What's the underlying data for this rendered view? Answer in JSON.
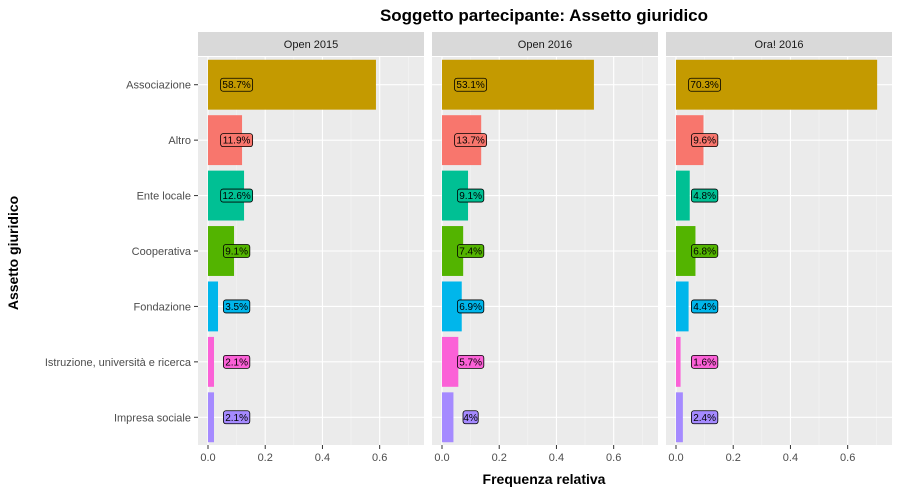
{
  "chart_data": {
    "type": "bar",
    "orientation": "horizontal",
    "title": "Soggetto partecipante: Assetto giuridico",
    "xlabel": "Frequenza relativa",
    "ylabel": "Assetto giuridico",
    "xlim": [
      0,
      0.72
    ],
    "x_ticks": [
      "0.0",
      "0.2",
      "0.4",
      "0.6"
    ],
    "x_tick_values": [
      0,
      0.2,
      0.4,
      0.6
    ],
    "categories": [
      "Associazione",
      "Altro",
      "Ente locale",
      "Cooperativa",
      "Fondazione",
      "Istruzione, università e ricerca",
      "Impresa sociale"
    ],
    "category_colors": {
      "Associazione": "#C49A00",
      "Altro": "#F8766D",
      "Ente locale": "#00C094",
      "Cooperativa": "#53B400",
      "Fondazione": "#00B6EB",
      "Istruzione, università e ricerca": "#FB61D7",
      "Impresa sociale": "#A58AFF"
    },
    "grid": true,
    "legend": "none",
    "panels": [
      {
        "name": "Open 2015",
        "values": [
          0.587,
          0.119,
          0.126,
          0.091,
          0.035,
          0.021,
          0.021
        ],
        "labels": [
          "58.7%",
          "11.9%",
          "12.6%",
          "9.1%",
          "3.5%",
          "2.1%",
          "2.1%"
        ]
      },
      {
        "name": "Open 2016",
        "values": [
          0.531,
          0.137,
          0.091,
          0.074,
          0.069,
          0.057,
          0.04
        ],
        "labels": [
          "53.1%",
          "13.7%",
          "9.1%",
          "7.4%",
          "6.9%",
          "5.7%",
          "4%"
        ]
      },
      {
        "name": "Ora! 2016",
        "values": [
          0.703,
          0.096,
          0.048,
          0.068,
          0.044,
          0.016,
          0.024
        ],
        "labels": [
          "70.3%",
          "9.6%",
          "4.8%",
          "6.8%",
          "4.4%",
          "1.6%",
          "2.4%"
        ]
      }
    ]
  }
}
